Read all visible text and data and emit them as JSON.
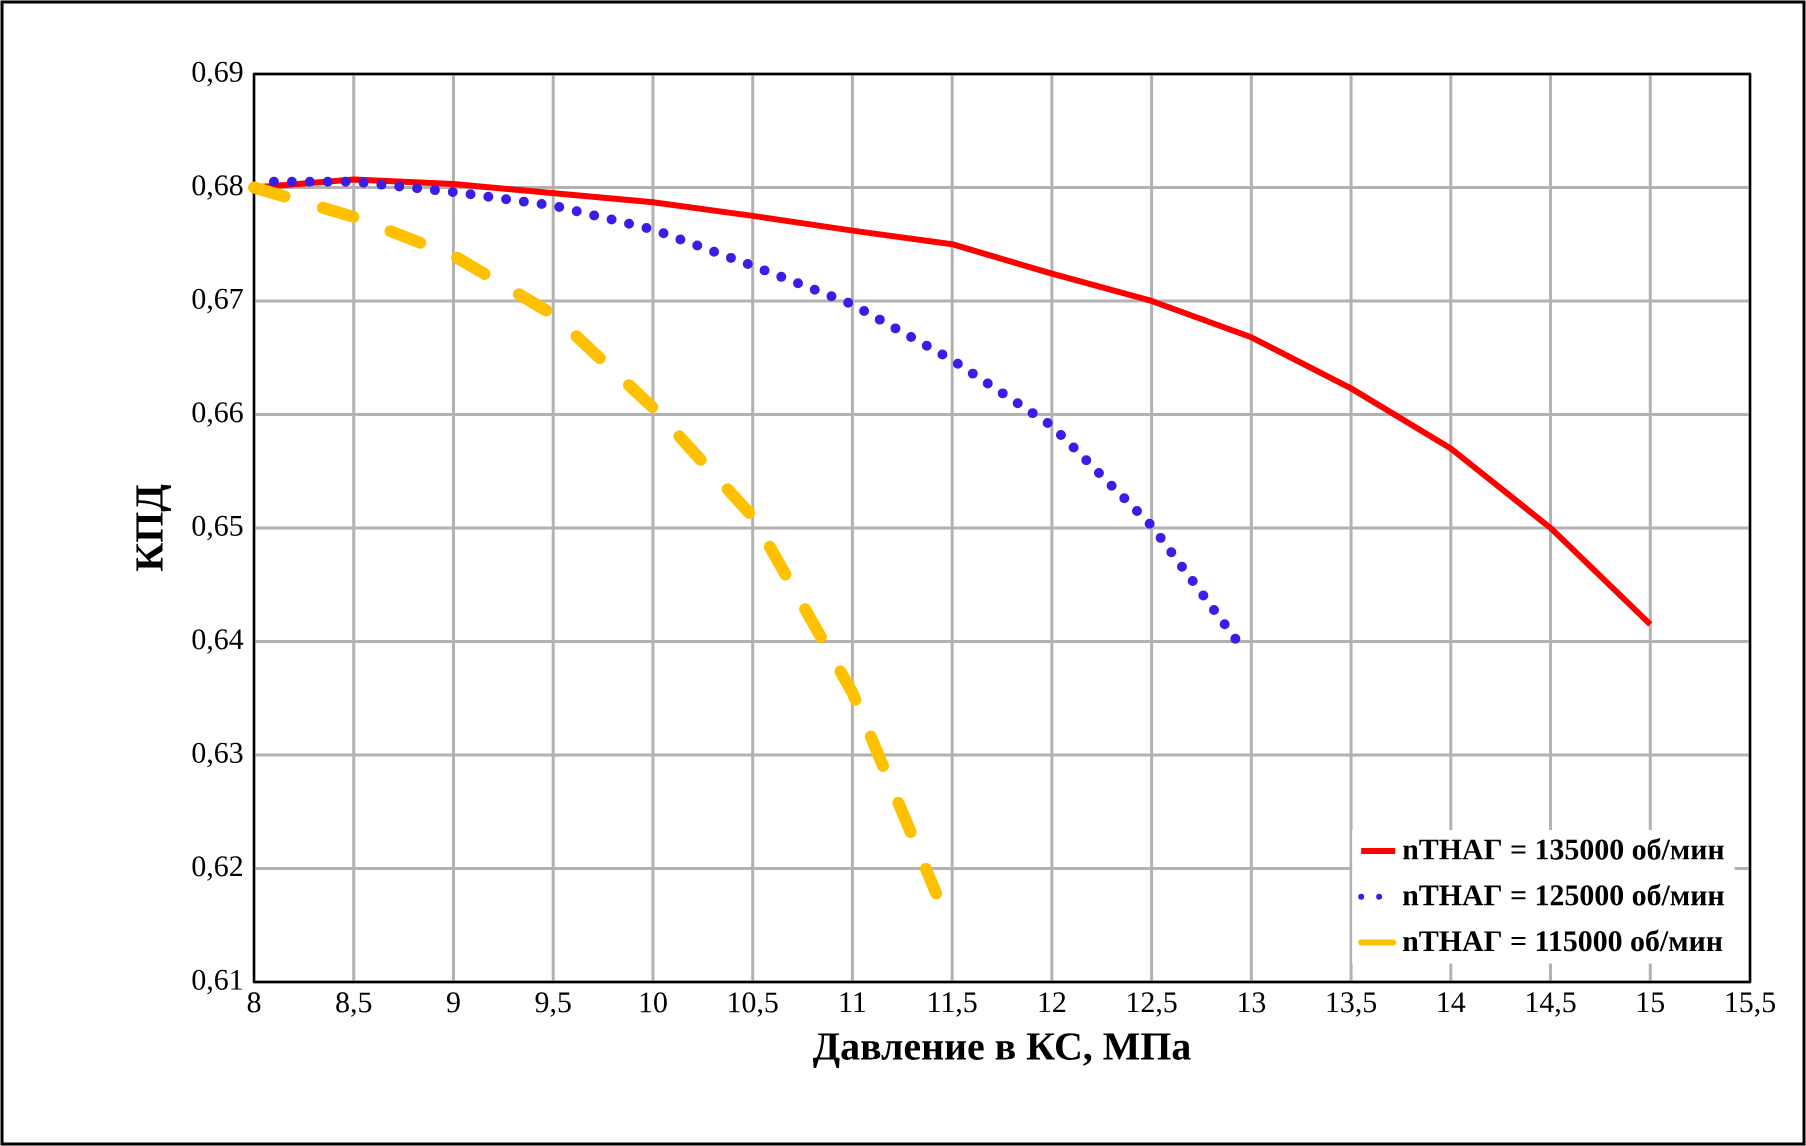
{
  "chart_data": {
    "type": "line",
    "xlabel": "Давление в КС, МПа",
    "ylabel": "КПД",
    "series": [
      {
        "name": "nТНАГ = 135000 об/мин",
        "color": "#ff0000",
        "line_style": "solid",
        "x": [
          8,
          8.5,
          9,
          9.5,
          10,
          10.5,
          11,
          11.5,
          12,
          12.5,
          13,
          13.5,
          14,
          14.5,
          15
        ],
        "values": [
          0.68,
          0.6807,
          0.6803,
          0.6795,
          0.6787,
          0.6775,
          0.6762,
          0.675,
          0.6724,
          0.67,
          0.6668,
          0.6623,
          0.657,
          0.65,
          0.6415
        ]
      },
      {
        "name": "nТНАГ = 125000 об/мин",
        "color": "#3a1ee8",
        "line_style": "dotted",
        "x": [
          8.1,
          8.5,
          9,
          9.5,
          10,
          10.5,
          11,
          11.5,
          12,
          12.5,
          12.93
        ],
        "values": [
          0.6805,
          0.6805,
          0.6796,
          0.6784,
          0.6763,
          0.6731,
          0.6697,
          0.6648,
          0.659,
          0.6502,
          0.64
        ]
      },
      {
        "name": "nТНАГ =  115000 об/мин",
        "color": "#ffc000",
        "line_style": "dashed",
        "x": [
          8,
          8.5,
          9,
          9.5,
          10,
          10.5,
          11,
          11.42
        ],
        "values": [
          0.68,
          0.6774,
          0.674,
          0.6688,
          0.6606,
          0.651,
          0.6355,
          0.6178
        ]
      }
    ],
    "xlim": [
      8,
      15.5
    ],
    "ylim": [
      0.61,
      0.69
    ],
    "xticks": [
      8,
      {
        "value": 8.5,
        "label": "8,5"
      },
      9,
      {
        "value": 9.5,
        "label": "9,5"
      },
      10,
      {
        "value": 10.5,
        "label": "10,5"
      },
      11,
      {
        "value": 11.5,
        "label": "11,5"
      },
      12,
      {
        "value": 12.5,
        "label": "12,5"
      },
      13,
      {
        "value": 13.5,
        "label": "13,5"
      },
      14,
      {
        "value": 14.5,
        "label": "14,5"
      },
      15,
      {
        "value": 15.5,
        "label": "15,5"
      }
    ],
    "yticks": [
      {
        "value": 0.61,
        "label": "0,61"
      },
      {
        "value": 0.62,
        "label": "0,62"
      },
      {
        "value": 0.63,
        "label": "0,63"
      },
      {
        "value": 0.64,
        "label": "0,64"
      },
      {
        "value": 0.65,
        "label": "0,65"
      },
      {
        "value": 0.66,
        "label": "0,66"
      },
      {
        "value": 0.67,
        "label": "0,67"
      },
      {
        "value": 0.68,
        "label": "0,68"
      },
      {
        "value": 0.69,
        "label": "0,69"
      }
    ],
    "grid": true,
    "legend": "bottom right",
    "marker": "none"
  }
}
